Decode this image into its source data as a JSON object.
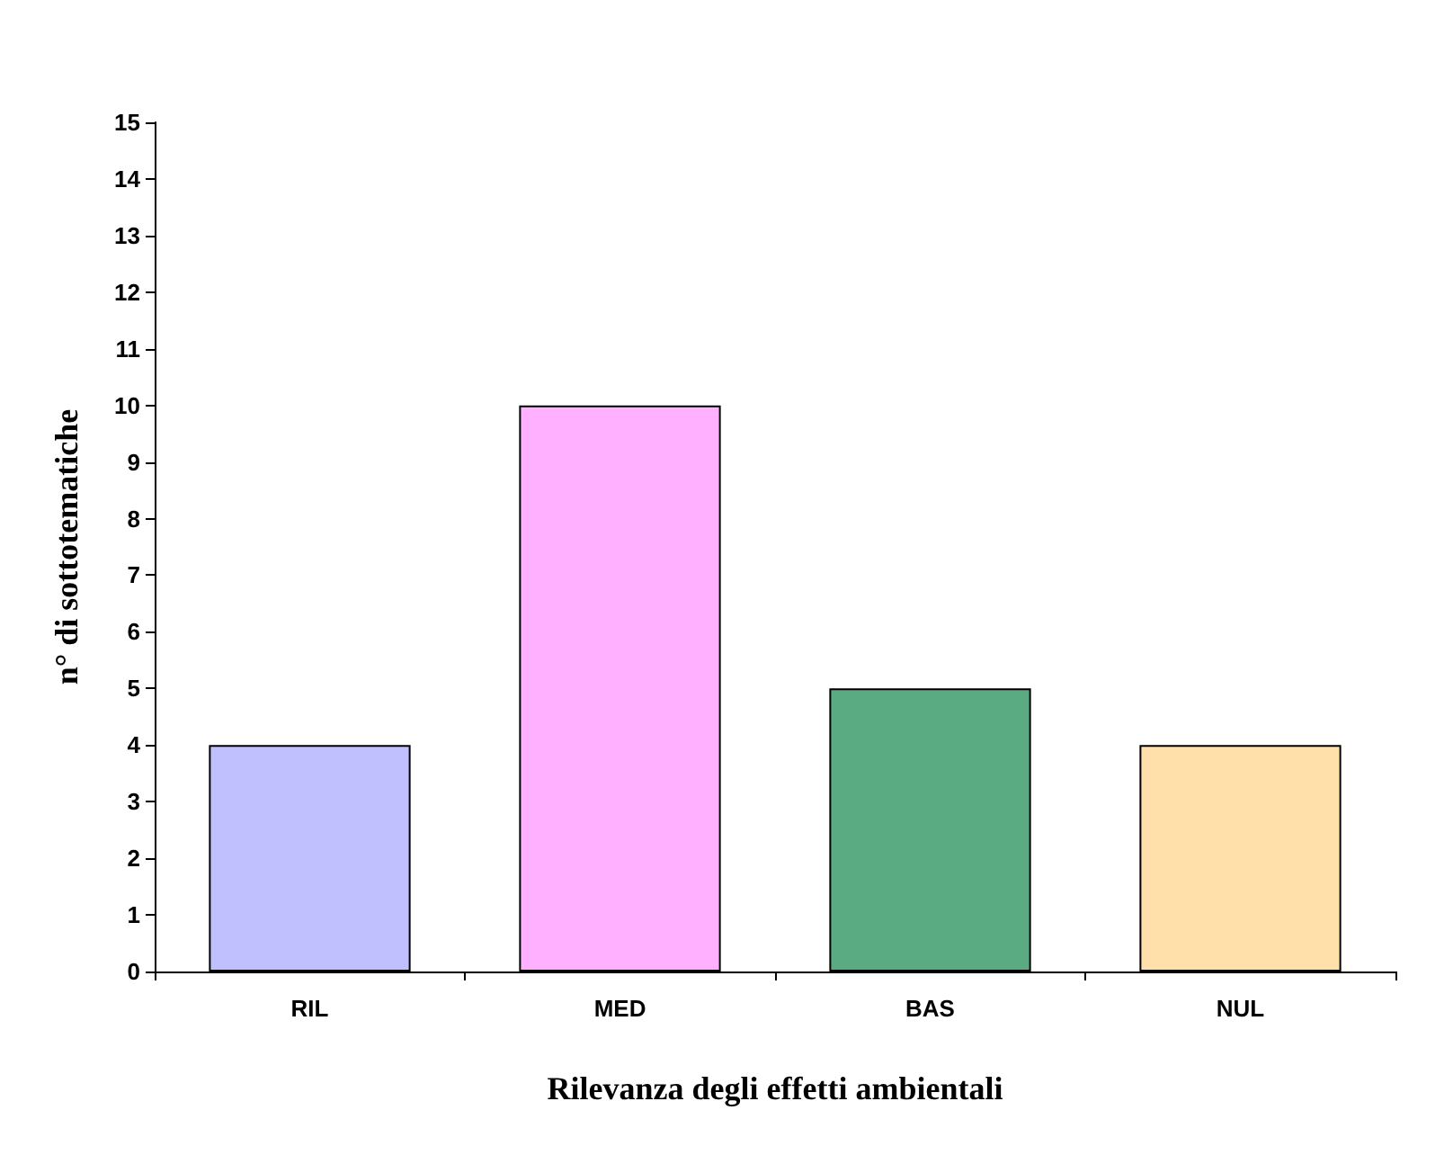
{
  "chart_data": {
    "type": "bar",
    "xlabel": "Rilevanza degli effetti ambientali",
    "ylabel": "n° di sottotematiche",
    "categories": [
      "RIL",
      "MED",
      "BAS",
      "NUL"
    ],
    "values": [
      4,
      10,
      5,
      4
    ],
    "colors": [
      "#c0c0ff",
      "#ffb0ff",
      "#5aaa82",
      "#ffdfaa"
    ],
    "ylim": [
      0,
      15
    ],
    "yticks": [
      0,
      1,
      2,
      3,
      4,
      5,
      6,
      7,
      8,
      9,
      10,
      11,
      12,
      13,
      14,
      15
    ],
    "grid": false
  }
}
